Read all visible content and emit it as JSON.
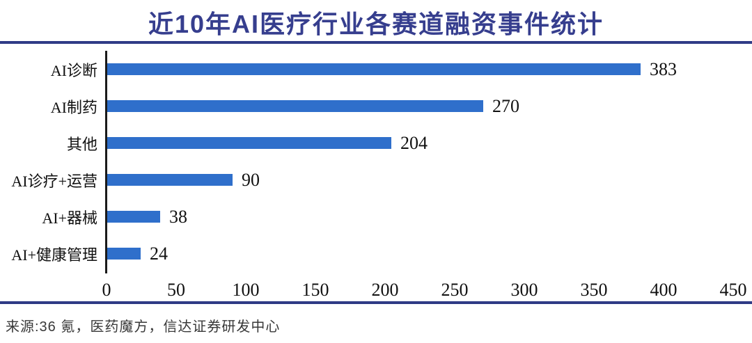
{
  "chart_data": {
    "type": "bar",
    "orientation": "horizontal",
    "title": "近10年AI医疗行业各赛道融资事件统计",
    "categories": [
      "AI诊断",
      "AI制药",
      "其他",
      "AI诊疗+运营",
      "AI+器械",
      "AI+健康管理"
    ],
    "values": [
      383,
      270,
      204,
      90,
      38,
      24
    ],
    "x_ticks": [
      0,
      50,
      100,
      150,
      200,
      250,
      300,
      350,
      400,
      450
    ],
    "xlim": [
      0,
      450
    ],
    "value_labels_shown": true,
    "grid": false,
    "legend": false
  },
  "colors": {
    "title_navy": "#363E8E",
    "divider_navy": "#2F3B86",
    "bar_blue": "#2F6FCB",
    "axis_black": "#1a1a1a",
    "label_black": "#111111",
    "source_gray": "#383838"
  },
  "footer": {
    "source": "来源:36 氪，医药魔方，信达证券研发中心"
  }
}
